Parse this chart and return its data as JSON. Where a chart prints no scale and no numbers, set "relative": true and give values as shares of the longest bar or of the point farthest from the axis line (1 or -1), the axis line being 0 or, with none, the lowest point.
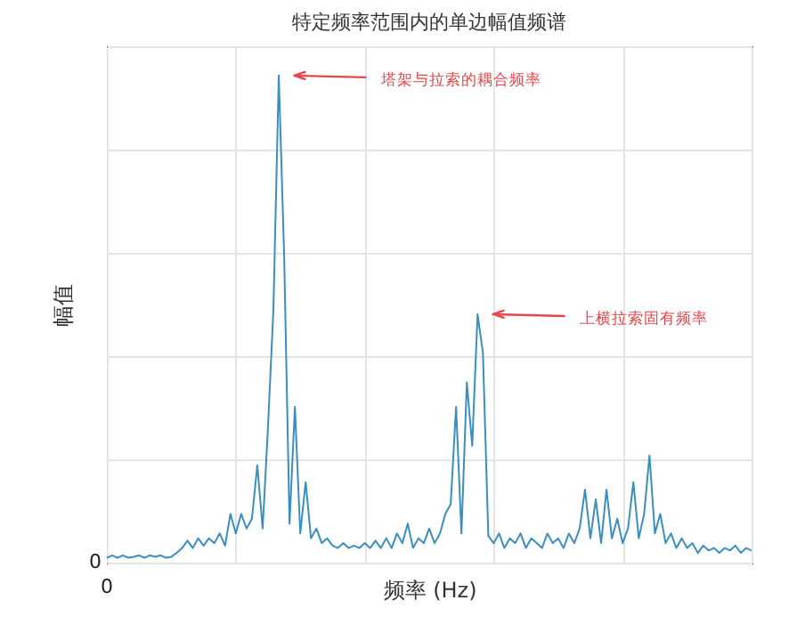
{
  "chart_data": {
    "type": "line",
    "title": "特定频率范围内的单边幅值频谱",
    "xlabel": "频率 (Hz)",
    "ylabel": "幅值",
    "relative": true,
    "grid": true,
    "color": "#3a8fc0",
    "categories": [
      null,
      null,
      null,
      null,
      null,
      null,
      null,
      null,
      null,
      null,
      null,
      null,
      null,
      null,
      null,
      null,
      null,
      null,
      null,
      null,
      null,
      null,
      null,
      null,
      null,
      null,
      null,
      null,
      null,
      null,
      null,
      null,
      null,
      null,
      null,
      null,
      null,
      null,
      null,
      null,
      null,
      null,
      null,
      null,
      null,
      null,
      null,
      null,
      null,
      null,
      null,
      null,
      null,
      null,
      null,
      null,
      null,
      null,
      null,
      null,
      null,
      null,
      null,
      null,
      null,
      null,
      null,
      null,
      null,
      null,
      null,
      null,
      null,
      null,
      null,
      null,
      null,
      null,
      null,
      null,
      null,
      null,
      null,
      null,
      null,
      null,
      null,
      null,
      null,
      null,
      null,
      null,
      null,
      null,
      null,
      null,
      null,
      null,
      null,
      null,
      null,
      null,
      null,
      null,
      null,
      null,
      null,
      null,
      null,
      null,
      null,
      null,
      null,
      null,
      null,
      null,
      null,
      null,
      null,
      null,
      null
    ],
    "values": [
      0.01,
      0.015,
      0.01,
      0.015,
      0.01,
      0.012,
      0.015,
      0.01,
      0.015,
      0.012,
      0.015,
      0.01,
      0.012,
      0.02,
      0.03,
      0.045,
      0.03,
      0.05,
      0.035,
      0.05,
      0.04,
      0.06,
      0.035,
      0.1,
      0.06,
      0.1,
      0.07,
      0.09,
      0.2,
      0.07,
      0.28,
      0.52,
      1.0,
      0.63,
      0.08,
      0.32,
      0.06,
      0.165,
      0.05,
      0.07,
      0.04,
      0.05,
      0.035,
      0.03,
      0.04,
      0.03,
      0.035,
      0.03,
      0.04,
      0.03,
      0.045,
      0.03,
      0.05,
      0.03,
      0.06,
      0.04,
      0.08,
      0.03,
      0.05,
      0.04,
      0.07,
      0.04,
      0.06,
      0.1,
      0.12,
      0.32,
      0.06,
      0.37,
      0.24,
      0.51,
      0.43,
      0.055,
      0.04,
      0.06,
      0.03,
      0.05,
      0.04,
      0.06,
      0.03,
      0.05,
      0.04,
      0.03,
      0.06,
      0.04,
      0.05,
      0.03,
      0.06,
      0.04,
      0.07,
      0.15,
      0.05,
      0.13,
      0.04,
      0.15,
      0.05,
      0.09,
      0.04,
      0.07,
      0.165,
      0.05,
      0.1,
      0.22,
      0.06,
      0.1,
      0.04,
      0.06,
      0.03,
      0.05,
      0.03,
      0.04,
      0.02,
      0.035,
      0.025,
      0.03,
      0.02,
      0.03,
      0.025,
      0.035,
      0.02,
      0.03,
      0.025
    ],
    "annotations": [
      "塔架与拉索的耦合频率",
      "上横拉索固有频率",
      "0",
      "0"
    ]
  }
}
